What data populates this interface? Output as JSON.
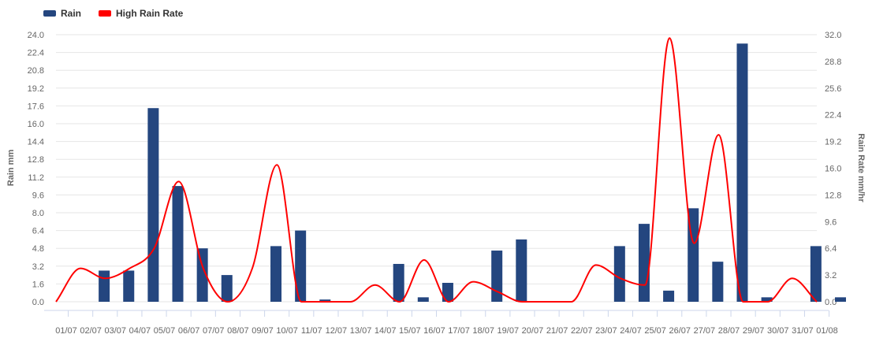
{
  "colors": {
    "rain": "#24467f",
    "rate": "#ff0000",
    "grid": "#e6e6e6",
    "axis_text": "#666666"
  },
  "legend": {
    "rain_label": "Rain",
    "rate_label": "High Rain Rate"
  },
  "chart_data": {
    "type": "bar",
    "categories": [
      "01/07",
      "02/07",
      "03/07",
      "04/07",
      "05/07",
      "06/07",
      "07/07",
      "08/07",
      "09/07",
      "10/07",
      "11/07",
      "12/07",
      "13/07",
      "14/07",
      "15/07",
      "16/07",
      "17/07",
      "18/07",
      "19/07",
      "20/07",
      "21/07",
      "22/07",
      "23/07",
      "24/07",
      "25/07",
      "26/07",
      "27/07",
      "28/07",
      "29/07",
      "30/07",
      "31/07",
      "01/08"
    ],
    "series": [
      {
        "name": "Rain",
        "type": "bar",
        "axis": "left",
        "values": [
          0.0,
          2.8,
          2.8,
          17.4,
          10.4,
          4.8,
          2.4,
          0.0,
          5.0,
          6.4,
          0.2,
          0.0,
          0.0,
          3.4,
          0.4,
          1.7,
          0.0,
          4.6,
          5.6,
          0.0,
          0.0,
          0.0,
          5.0,
          7.0,
          1.0,
          8.4,
          3.6,
          23.2,
          0.4,
          0.0,
          5.0,
          0.4
        ]
      },
      {
        "name": "High Rain Rate",
        "type": "line",
        "axis": "right",
        "values": [
          0.0,
          4.0,
          2.8,
          4.0,
          6.4,
          14.4,
          4.0,
          0.0,
          4.0,
          16.4,
          0.0,
          0.0,
          0.0,
          2.0,
          0.0,
          5.0,
          0.0,
          2.4,
          1.2,
          0.0,
          0.0,
          0.0,
          4.4,
          2.8,
          2.0,
          31.6,
          7.0,
          20.0,
          0.0,
          0.0,
          2.8,
          0.0
        ]
      }
    ],
    "ylabel": "Rain mm",
    "y2label": "Rain Rate mm/hr",
    "ylim": [
      0,
      24
    ],
    "y2lim": [
      0,
      32
    ],
    "yticks": [
      "0.0",
      "1.6",
      "3.2",
      "4.8",
      "6.4",
      "8.0",
      "9.6",
      "11.2",
      "12.8",
      "14.4",
      "16.0",
      "17.6",
      "19.2",
      "20.8",
      "22.4",
      "24.0"
    ],
    "y2ticks": [
      "0.0",
      "3.2",
      "6.4",
      "9.6",
      "12.8",
      "16.0",
      "19.2",
      "22.4",
      "25.6",
      "28.8",
      "32.0"
    ],
    "grid": true,
    "legend_position": "top-left"
  }
}
